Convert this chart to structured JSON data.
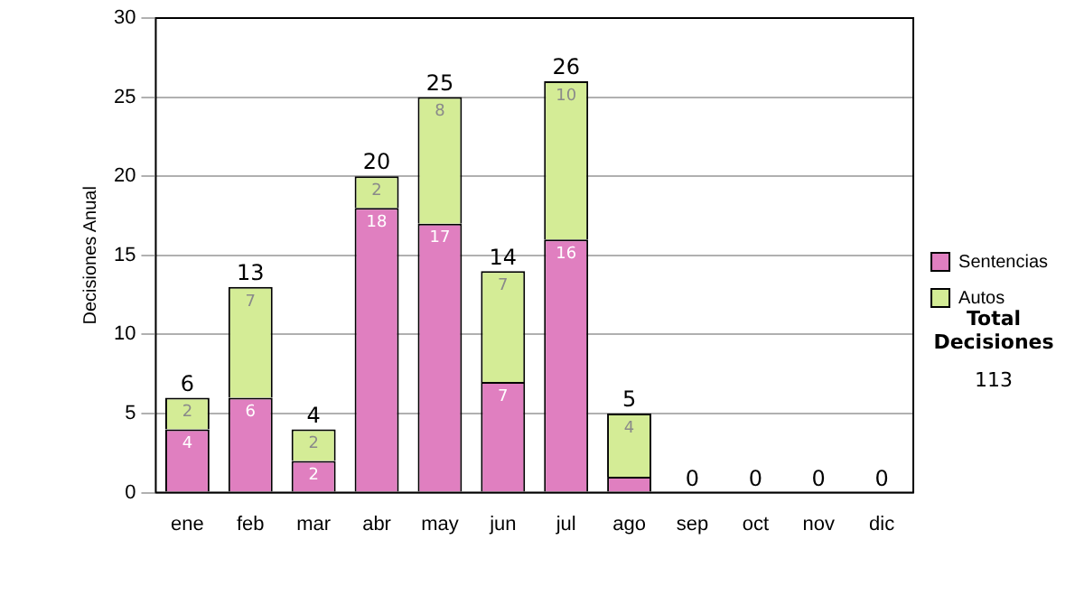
{
  "chart_data": {
    "type": "bar",
    "stacked": true,
    "ylabel": "Decisiones Anual",
    "categories": [
      "ene",
      "feb",
      "mar",
      "abr",
      "may",
      "jun",
      "jul",
      "ago",
      "sep",
      "oct",
      "nov",
      "dic"
    ],
    "series": [
      {
        "name": "Sentencias",
        "color": "#e07fc0",
        "values": [
          4,
          6,
          2,
          18,
          17,
          7,
          16,
          1,
          0,
          0,
          0,
          0
        ],
        "value_labels": [
          "4",
          "6",
          "2",
          "18",
          "17",
          "7",
          "16",
          null,
          null,
          null,
          null,
          null
        ]
      },
      {
        "name": "Autos",
        "color": "#d4ec96",
        "values": [
          2,
          7,
          2,
          2,
          8,
          7,
          10,
          4,
          0,
          0,
          0,
          0
        ],
        "value_labels": [
          "2",
          "7",
          "2",
          "2",
          "8",
          "7",
          "10",
          "4",
          null,
          null,
          null,
          null
        ]
      }
    ],
    "totals": [
      "6",
      "13",
      "4",
      "20",
      "25",
      "14",
      "26",
      "5",
      "0",
      "0",
      "0",
      "0"
    ],
    "ylim": [
      0,
      30
    ],
    "yticks": [
      0,
      5,
      10,
      15,
      20,
      25,
      30
    ],
    "grid": "y",
    "legend": "right",
    "annotations": [
      "Total Decisiones",
      "113"
    ]
  }
}
